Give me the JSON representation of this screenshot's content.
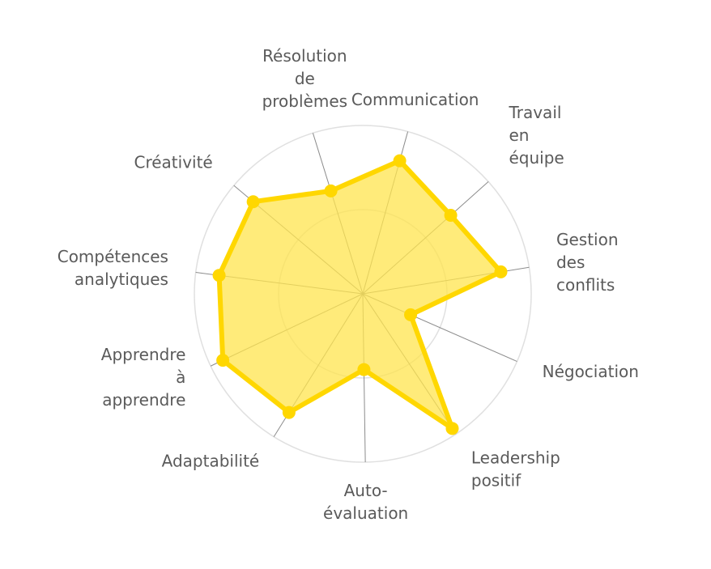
{
  "chart_data": {
    "type": "radar",
    "categories": [
      "Communication",
      "Travail en équipe",
      "Gestion des conflits",
      "Négociation",
      "Leadership positif",
      "Auto-évaluation",
      "Adaptabilité",
      "Apprendre à apprendre",
      "Compétences analytiques",
      "Créativité",
      "Résolution de problèmes"
    ],
    "category_lines": [
      [
        "Communication"
      ],
      [
        "Travail",
        "en",
        "équipe"
      ],
      [
        "Gestion",
        "des",
        "conflits"
      ],
      [
        "Négociation"
      ],
      [
        "Leadership",
        "positif"
      ],
      [
        "Auto-",
        "évaluation"
      ],
      [
        "Adaptabilité"
      ],
      [
        "Apprendre",
        "à",
        "apprendre"
      ],
      [
        "Compétences",
        "analytiques"
      ],
      [
        "Créativité"
      ],
      [
        "Résolution",
        "de",
        "problèmes"
      ]
    ],
    "series": [
      {
        "values": [
          82,
          70,
          83,
          31,
          96,
          45,
          83,
          92,
          86,
          85,
          64
        ],
        "color": "#ffd700",
        "fill": "#ffe44d"
      }
    ],
    "rlim": [
      0,
      100
    ],
    "grid_rings": [
      50,
      100
    ],
    "grid": true,
    "legend": "none",
    "colors": {
      "grid_ring": "#e0e0e0",
      "spoke": "#8c8c8c",
      "label": "#5a5a5a"
    }
  }
}
